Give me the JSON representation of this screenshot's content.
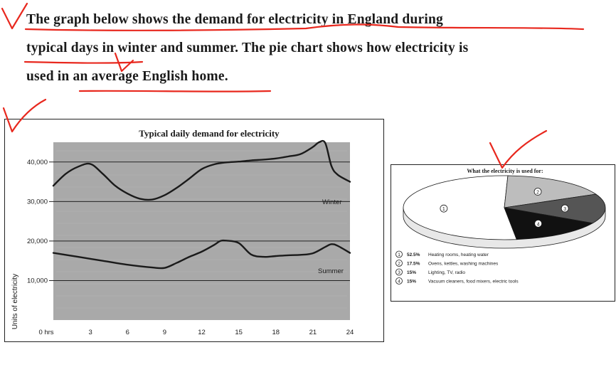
{
  "intro": {
    "line1": "The graph below shows the demand for electricity in England during",
    "line2": "typical days in winter and summer. The pie chart shows how electricity is",
    "line3": "used in an average English home."
  },
  "colors": {
    "annotation": "#e8281e",
    "plot_bg": "#a9a9a9",
    "ink": "#1a1a1a"
  },
  "chart_data": [
    {
      "type": "line",
      "title": "Typical daily demand for electricity",
      "xlabel": "",
      "ylabel": "Units of electricity",
      "x_ticks": [
        "0 hrs",
        "3",
        "6",
        "9",
        "12",
        "15",
        "18",
        "21",
        "24"
      ],
      "y_ticks": [
        "10,000",
        "20,000",
        "30,000",
        "40,000"
      ],
      "xlim": [
        0,
        24
      ],
      "ylim": [
        0,
        45000
      ],
      "grid": true,
      "series": [
        {
          "name": "Winter",
          "x": [
            0,
            1,
            2,
            3,
            4,
            5,
            6,
            7,
            8,
            9,
            10,
            11,
            12,
            13,
            14,
            15,
            16,
            17,
            18,
            19,
            20,
            21,
            21.5,
            22,
            22.5,
            23,
            24
          ],
          "y": [
            34000,
            37000,
            38800,
            39500,
            37000,
            34000,
            32000,
            30700,
            30500,
            31600,
            33500,
            35800,
            38200,
            39400,
            39900,
            40100,
            40400,
            40600,
            40900,
            41400,
            42000,
            43800,
            45000,
            44800,
            39000,
            36800,
            35000
          ]
        },
        {
          "name": "Summer",
          "x": [
            0,
            2,
            4,
            6,
            8,
            9,
            10,
            11,
            12,
            13,
            13.5,
            14,
            15,
            16,
            17,
            18,
            19,
            20,
            21,
            22,
            22.5,
            23,
            24
          ],
          "y": [
            17000,
            16000,
            15000,
            14000,
            13300,
            13200,
            14500,
            16000,
            17300,
            19000,
            20000,
            20100,
            19500,
            16600,
            16000,
            16200,
            16400,
            16500,
            16900,
            18500,
            19200,
            18800,
            17000
          ]
        }
      ]
    },
    {
      "type": "pie",
      "title": "What the electricity is used for:",
      "slices": [
        {
          "marker": "1",
          "percent_label": "52.5%",
          "value": 52.5,
          "label": "Heating rooms, heating water",
          "color": "#ffffff"
        },
        {
          "marker": "2",
          "percent_label": "17.5%",
          "value": 17.5,
          "label": "Ovens, kettles, washing machines",
          "color": "#bdbdbd"
        },
        {
          "marker": "3",
          "percent_label": "15%",
          "value": 15,
          "label": "Lighting, TV, radio",
          "color": "#555555"
        },
        {
          "marker": "4",
          "percent_label": "15%",
          "value": 15,
          "label": "Vacuum cleaners, food mixers, electric tools",
          "color": "#111111"
        }
      ]
    }
  ]
}
